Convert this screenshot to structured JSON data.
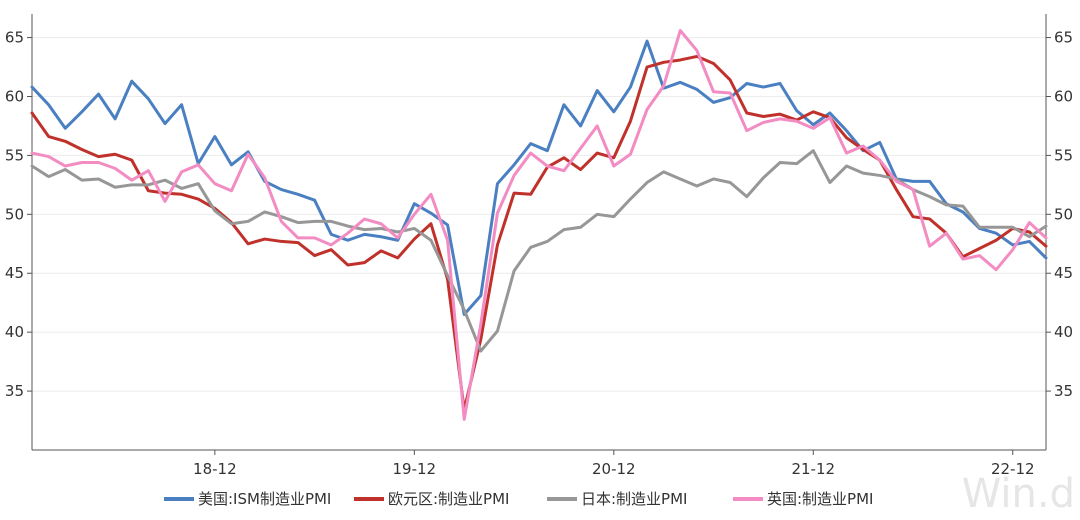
{
  "watermark": "Win.d",
  "chart_data": {
    "type": "line",
    "title": "",
    "xlabel": "",
    "ylabel": "",
    "ylim": [
      30,
      67
    ],
    "y_ticks": [
      35,
      40,
      45,
      50,
      55,
      60,
      65
    ],
    "y_axis_both_sides": true,
    "x_tick_labels": [
      "18-12",
      "19-12",
      "20-12",
      "21-12",
      "22-12"
    ],
    "legend_position": "bottom",
    "x": [
      "18-01",
      "18-02",
      "18-03",
      "18-04",
      "18-05",
      "18-06",
      "18-07",
      "18-08",
      "18-09",
      "18-10",
      "18-11",
      "18-12",
      "19-01",
      "19-02",
      "19-03",
      "19-04",
      "19-05",
      "19-06",
      "19-07",
      "19-08",
      "19-09",
      "19-10",
      "19-11",
      "19-12",
      "20-01",
      "20-02",
      "20-03",
      "20-04",
      "20-05",
      "20-06",
      "20-07",
      "20-08",
      "20-09",
      "20-10",
      "20-11",
      "20-12",
      "21-01",
      "21-02",
      "21-03",
      "21-04",
      "21-05",
      "21-06",
      "21-07",
      "21-08",
      "21-09",
      "21-10",
      "21-11",
      "21-12",
      "22-01",
      "22-02",
      "22-03",
      "22-04",
      "22-05",
      "22-06",
      "22-07",
      "22-08",
      "22-09",
      "22-10",
      "22-11",
      "22-12",
      "23-01",
      "23-02"
    ],
    "series": [
      {
        "name": "美国:ISM制造业PMI",
        "color": "#4a7fc1",
        "values": [
          60.8,
          59.3,
          57.3,
          58.7,
          60.2,
          58.1,
          61.3,
          59.8,
          57.7,
          59.3,
          54.3,
          56.6,
          54.2,
          55.3,
          52.8,
          52.1,
          51.7,
          51.2,
          48.3,
          47.8,
          48.3,
          48.1,
          47.8,
          50.9,
          50.1,
          49.1,
          41.5,
          43.1,
          52.6,
          54.2,
          56.0,
          55.4,
          59.3,
          57.5,
          60.5,
          58.7,
          60.8,
          64.7,
          60.7,
          61.2,
          60.6,
          59.5,
          59.9,
          61.1,
          60.8,
          61.1,
          58.8,
          57.6,
          58.6,
          57.1,
          55.4,
          56.1,
          53.0,
          52.8,
          52.8,
          50.9,
          50.2,
          48.8,
          48.4,
          47.4,
          47.7,
          46.3
        ]
      },
      {
        "name": "欧元区:制造业PMI",
        "color": "#c0312b",
        "values": [
          58.6,
          56.6,
          56.2,
          55.5,
          54.9,
          55.1,
          54.6,
          52.0,
          51.8,
          51.7,
          51.3,
          50.5,
          49.3,
          47.5,
          47.9,
          47.7,
          47.6,
          46.5,
          47.0,
          45.7,
          45.9,
          46.9,
          46.3,
          47.9,
          49.2,
          44.5,
          33.4,
          39.4,
          47.4,
          51.8,
          51.7,
          54.0,
          54.8,
          53.8,
          55.2,
          54.8,
          57.9,
          62.5,
          62.9,
          63.1,
          63.4,
          62.8,
          61.4,
          58.6,
          58.3,
          58.5,
          58.0,
          58.7,
          58.2,
          56.5,
          55.5,
          54.6,
          52.1,
          49.8,
          49.6,
          48.4,
          46.4,
          47.1,
          47.8,
          48.8,
          48.5,
          47.3
        ]
      },
      {
        "name": "日本:制造业PMI",
        "color": "#979797",
        "values": [
          54.1,
          53.2,
          53.8,
          52.9,
          53.0,
          52.3,
          52.5,
          52.5,
          52.9,
          52.2,
          52.6,
          50.3,
          49.2,
          49.4,
          50.2,
          49.8,
          49.3,
          49.4,
          49.4,
          49.0,
          48.7,
          48.8,
          48.5,
          48.8,
          47.8,
          44.8,
          41.9,
          38.4,
          40.1,
          45.2,
          47.2,
          47.7,
          48.7,
          48.9,
          50.0,
          49.8,
          51.3,
          52.7,
          53.6,
          53.0,
          52.4,
          53.0,
          52.7,
          51.5,
          53.1,
          54.4,
          54.3,
          55.4,
          52.7,
          54.1,
          53.5,
          53.3,
          53.0,
          52.1,
          51.5,
          50.8,
          50.7,
          48.9,
          48.9,
          48.9,
          48.1,
          49.0
        ]
      },
      {
        "name": "英国:制造业PMI",
        "color": "#f28cc2",
        "values": [
          55.2,
          54.9,
          54.1,
          54.4,
          54.4,
          53.9,
          52.9,
          53.7,
          51.1,
          53.6,
          54.2,
          52.6,
          52.0,
          55.1,
          53.1,
          49.4,
          48.0,
          48.0,
          47.4,
          48.4,
          49.6,
          49.2,
          48.0,
          50.0,
          51.7,
          47.8,
          32.6,
          40.7,
          50.1,
          53.3,
          55.2,
          54.1,
          53.7,
          55.6,
          57.5,
          54.1,
          55.1,
          58.9,
          60.9,
          65.6,
          63.9,
          60.4,
          60.3,
          57.1,
          57.8,
          58.1,
          57.9,
          57.3,
          58.2,
          55.2,
          55.8,
          54.6,
          52.8,
          52.1,
          47.3,
          48.4,
          46.2,
          46.5,
          45.3,
          47.0,
          49.3,
          48.0
        ]
      }
    ]
  }
}
